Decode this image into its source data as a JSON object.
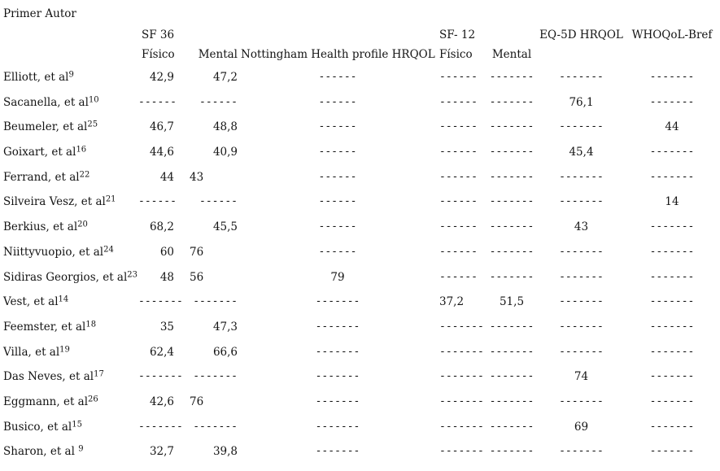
{
  "page": {
    "background_color": "#ffffff",
    "text_color": "#141414"
  },
  "table": {
    "title": "Primer Autor",
    "groups": {
      "sf36": "SF 36",
      "sf12": "SF- 12",
      "eq5d": "EQ-5D HRQOL",
      "whoqol": "WHOQoL-Bref"
    },
    "subheaders": {
      "sf36_fisico": "Físico",
      "sf36_mental": "Mental",
      "nottingham": "Nottingham Health profile HRQOL",
      "sf12_fisico": "Físico",
      "sf12_mental": "Mental"
    },
    "columns": [
      "Primer Autor",
      "SF 36 Físico",
      "SF 36 Mental",
      "Nottingham Health profile HRQOL",
      "SF- 12 Físico",
      "SF- 12 Mental",
      "EQ-5D HRQOL",
      "WHOQoL-Bref"
    ],
    "rows": [
      {
        "author": "Elliott, et al",
        "ref": "9",
        "cells": [
          "42,9",
          "47,2",
          "------",
          "------",
          "-------",
          "-------",
          "-------"
        ]
      },
      {
        "author": "Sacanella, et al",
        "ref": "10",
        "cells": [
          "------",
          "------",
          "------",
          "------",
          "-------",
          "76,1",
          "-------"
        ]
      },
      {
        "author": "Beumeler, et al",
        "ref": "25",
        "cells": [
          "46,7",
          "48,8",
          "------",
          "------",
          "-------",
          "-------",
          "44"
        ]
      },
      {
        "author": "Goixart, et al",
        "ref": "16",
        "cells": [
          "44,6",
          "40,9",
          "------",
          "------",
          "-------",
          "45,4",
          "-------"
        ]
      },
      {
        "author": "Ferrand, et al",
        "ref": "22",
        "cells": [
          "44",
          "43",
          "------",
          "------",
          "-------",
          "-------",
          "-------"
        ]
      },
      {
        "author": "Silveira Vesz, et al",
        "ref": "21",
        "cells": [
          "------",
          "------",
          "------",
          "------",
          "-------",
          "-------",
          "14"
        ]
      },
      {
        "author": "Berkius, et al",
        "ref": "20",
        "cells": [
          "68,2",
          "45,5",
          "------",
          "------",
          "-------",
          "43",
          "-------"
        ]
      },
      {
        "author": "Niittyvuopio, et al",
        "ref": "24",
        "cells": [
          "60",
          "76",
          "------",
          "------",
          "-------",
          "-------",
          "-------"
        ]
      },
      {
        "author": "Sidiras Georgios, et al",
        "ref": "23",
        "cells": [
          "48",
          "56",
          "79",
          "------",
          "-------",
          "-------",
          "-------"
        ]
      },
      {
        "author": "Vest, et al",
        "ref": "14",
        "cells": [
          "-------",
          "-------",
          "-------",
          "37,2",
          "51,5",
          "-------",
          "-------"
        ]
      },
      {
        "author": "Feemster, et al",
        "ref": "18",
        "cells": [
          "35",
          "47,3",
          "-------",
          "-------",
          "-------",
          "-------",
          "-------"
        ]
      },
      {
        "author": "Villa, et al",
        "ref": "19",
        "cells": [
          "62,4",
          "66,6",
          "-------",
          "-------",
          "-------",
          "-------",
          "-------"
        ]
      },
      {
        "author": "Das Neves, et al",
        "ref": "17",
        "cells": [
          "-------",
          "-------",
          "-------",
          "-------",
          "-------",
          "74",
          "-------"
        ]
      },
      {
        "author": "Eggmann, et al",
        "ref": "26",
        "cells": [
          "42,6",
          "76",
          "-------",
          "-------",
          "-------",
          "-------",
          "-------"
        ]
      },
      {
        "author": "Busico, et al",
        "ref": "15",
        "cells": [
          "-------",
          "-------",
          "-------",
          "-------",
          "-------",
          "69",
          "-------"
        ]
      },
      {
        "author": "Sharon, et al ",
        "ref": "9",
        "cells": [
          "32,7",
          "39,8",
          "-------",
          "-------",
          "-------",
          "-------",
          "-------"
        ]
      }
    ]
  }
}
